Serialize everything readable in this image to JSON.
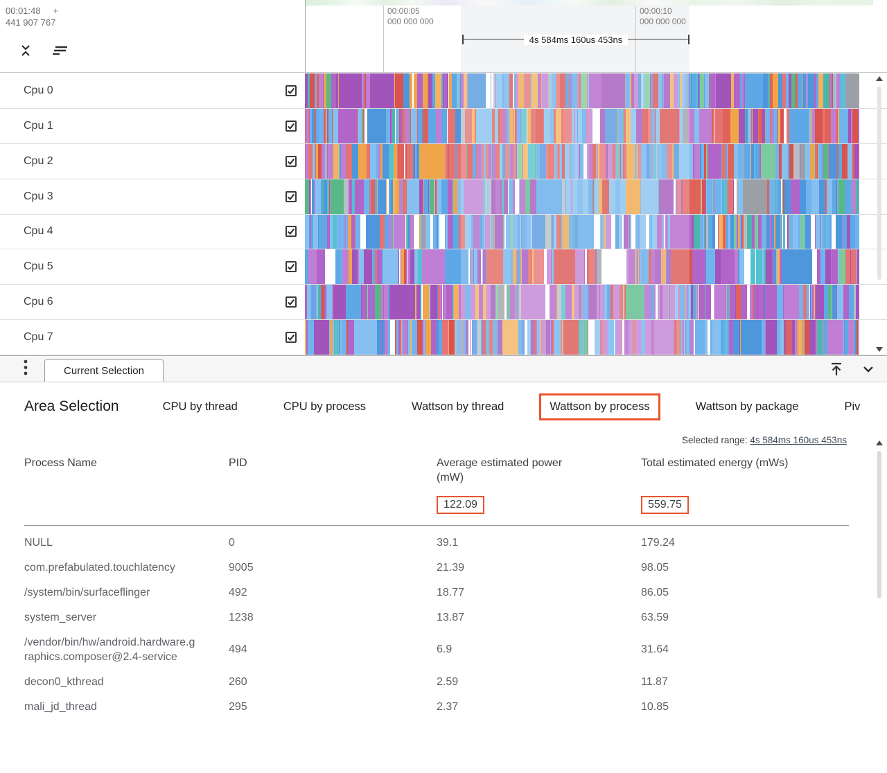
{
  "colors": {
    "accent_orange": "#e8542e"
  },
  "timeline": {
    "cursor_time": "00:01:48",
    "cursor_plus": "+",
    "cursor_ns": "441 907 767",
    "markers": [
      {
        "time": "00:00:05",
        "ns": "000 000 000"
      },
      {
        "time": "00:00:10",
        "ns": "000 000 000"
      }
    ],
    "measurement": "4s 584ms 160us 453ns"
  },
  "tracks": [
    {
      "label": "Cpu 0",
      "checked": true,
      "seed": 11,
      "weights": {
        "blue": 0.3,
        "purple": 0.22,
        "red": 0.13,
        "orange": 0.14,
        "green": 0.08,
        "teal": 0.03,
        "gray": 0.04,
        "white": 0.06
      }
    },
    {
      "label": "Cpu 1",
      "checked": true,
      "seed": 22,
      "weights": {
        "blue": 0.36,
        "purple": 0.16,
        "red": 0.3,
        "orange": 0.06,
        "green": 0.04,
        "teal": 0.02,
        "gray": 0.02,
        "white": 0.04
      }
    },
    {
      "label": "Cpu 2",
      "checked": true,
      "seed": 33,
      "weights": {
        "blue": 0.42,
        "purple": 0.12,
        "red": 0.28,
        "orange": 0.07,
        "green": 0.05,
        "teal": 0.02,
        "gray": 0.02,
        "white": 0.02
      }
    },
    {
      "label": "Cpu 3",
      "checked": true,
      "seed": 44,
      "weights": {
        "blue": 0.46,
        "purple": 0.22,
        "red": 0.08,
        "orange": 0.06,
        "green": 0.05,
        "teal": 0.02,
        "gray": 0.08,
        "white": 0.03
      }
    },
    {
      "label": "Cpu 4",
      "checked": true,
      "seed": 55,
      "weights": {
        "blue": 0.5,
        "purple": 0.22,
        "red": 0.06,
        "orange": 0.05,
        "green": 0.05,
        "teal": 0.02,
        "gray": 0.02,
        "white": 0.08
      }
    },
    {
      "label": "Cpu 5",
      "checked": true,
      "seed": 66,
      "weights": {
        "blue": 0.28,
        "purple": 0.32,
        "red": 0.14,
        "orange": 0.07,
        "green": 0.04,
        "teal": 0.02,
        "gray": 0.02,
        "white": 0.11
      }
    },
    {
      "label": "Cpu 6",
      "checked": true,
      "seed": 77,
      "weights": {
        "blue": 0.2,
        "purple": 0.46,
        "red": 0.07,
        "orange": 0.06,
        "green": 0.05,
        "teal": 0.02,
        "gray": 0.06,
        "white": 0.08
      }
    },
    {
      "label": "Cpu 7",
      "checked": true,
      "seed": 88,
      "weights": {
        "blue": 0.28,
        "purple": 0.38,
        "red": 0.14,
        "orange": 0.06,
        "green": 0.04,
        "teal": 0.02,
        "gray": 0.02,
        "white": 0.06
      }
    }
  ],
  "track_palette": {
    "blue": [
      "#5fa8e8",
      "#6fb3ef",
      "#4f97dd",
      "#86c0f0"
    ],
    "purple": [
      "#b265c8",
      "#a155bb",
      "#c07fd4"
    ],
    "red": [
      "#e0635a",
      "#d9534f",
      "#e57373"
    ],
    "orange": [
      "#efa64a",
      "#f2b25e"
    ],
    "green": [
      "#58b987",
      "#4db6ac",
      "#7ccb9e"
    ],
    "teal": [
      "#53c1d1"
    ],
    "gray": [
      "#9aa0a6",
      "#b9bec4"
    ],
    "white": [
      "#ffffff"
    ]
  },
  "details_bar": {
    "tab_label": "Current Selection"
  },
  "panel": {
    "title": "Area Selection",
    "tabs": [
      "CPU by thread",
      "CPU by process",
      "Wattson by thread",
      "Wattson by process",
      "Wattson by package",
      "Piv"
    ],
    "active_tab_index": 3,
    "selected_range_label": "Selected range:",
    "selected_range_value": "4s 584ms 160us 453ns"
  },
  "table": {
    "columns": [
      "Process Name",
      "PID",
      "Average estimated power (mW)",
      "Total estimated energy (mWs)"
    ],
    "totals": {
      "power": "122.09",
      "energy": "559.75"
    },
    "rows": [
      {
        "name": "NULL",
        "pid": "0",
        "power": "39.1",
        "energy": "179.24"
      },
      {
        "name": "com.prefabulated.touchlatency",
        "pid": "9005",
        "power": "21.39",
        "energy": "98.05"
      },
      {
        "name": "/system/bin/surfaceflinger",
        "pid": "492",
        "power": "18.77",
        "energy": "86.05"
      },
      {
        "name": "system_server",
        "pid": "1238",
        "power": "13.87",
        "energy": "63.59"
      },
      {
        "name": "/vendor/bin/hw/android.hardware.graphics.composer@2.4-service",
        "pid": "494",
        "power": "6.9",
        "energy": "31.64"
      },
      {
        "name": "decon0_kthread",
        "pid": "260",
        "power": "2.59",
        "energy": "11.87"
      },
      {
        "name": "mali_jd_thread",
        "pid": "295",
        "power": "2.37",
        "energy": "10.85"
      }
    ]
  }
}
